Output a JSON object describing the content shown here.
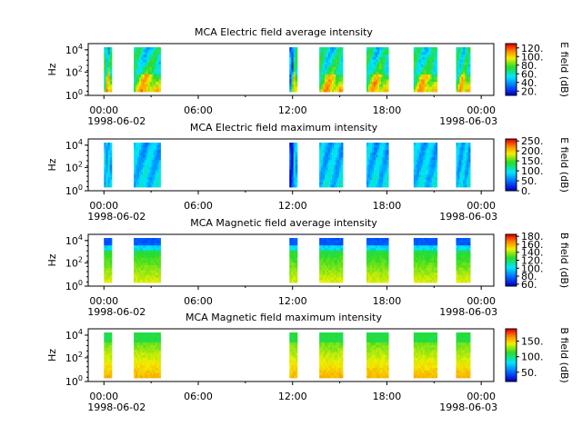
{
  "chart_data": [
    {
      "type": "heatmap",
      "title": "MCA  Electric field average intensity",
      "ylabel": "Hz",
      "y_scale": "log",
      "y_ticks": [
        "10^4",
        "10^2",
        "10^0"
      ],
      "x_ticks": [
        "00:00",
        "06:00",
        "12:00",
        "18:00",
        "00:00"
      ],
      "x_dates": [
        "1998-06-02",
        "1998-06-03"
      ],
      "colorbar": {
        "label": "E field (dB)",
        "ticks": [
          "120.",
          "100.",
          "80.",
          "60.",
          "40.",
          "20."
        ],
        "range": [
          10,
          130
        ]
      },
      "scheme": "efield",
      "segments_hours": [
        [
          0.0,
          0.5
        ],
        [
          1.9,
          3.6
        ],
        [
          11.8,
          12.3
        ],
        [
          13.7,
          15.2
        ],
        [
          16.7,
          18.1
        ],
        [
          19.7,
          21.2
        ],
        [
          22.4,
          23.3
        ]
      ]
    },
    {
      "type": "heatmap",
      "title": "MCA  Electric field maximum intensity",
      "ylabel": "Hz",
      "y_scale": "log",
      "y_ticks": [
        "10^4",
        "10^2",
        "10^0"
      ],
      "x_ticks": [
        "00:00",
        "06:00",
        "12:00",
        "18:00",
        "00:00"
      ],
      "x_dates": [
        "1998-06-02",
        "1998-06-03"
      ],
      "colorbar": {
        "label": "E field (dB)",
        "ticks": [
          "250.",
          "200.",
          "150.",
          "100.",
          "50.",
          "0."
        ],
        "range": [
          0,
          260
        ]
      },
      "scheme": "emax",
      "segments_hours": [
        [
          0.0,
          0.5
        ],
        [
          1.9,
          3.6
        ],
        [
          11.8,
          12.3
        ],
        [
          13.7,
          15.2
        ],
        [
          16.7,
          18.1
        ],
        [
          19.7,
          21.2
        ],
        [
          22.4,
          23.3
        ]
      ]
    },
    {
      "type": "heatmap",
      "title": "MCA  Magnetic field average intensity",
      "ylabel": "Hz",
      "y_scale": "log",
      "y_ticks": [
        "10^4",
        "10^2",
        "10^0"
      ],
      "x_ticks": [
        "00:00",
        "06:00",
        "12:00",
        "18:00",
        "00:00"
      ],
      "x_dates": [
        "1998-06-02",
        "1998-06-03"
      ],
      "colorbar": {
        "label": "B field (dB)",
        "ticks": [
          "180.",
          "160.",
          "140.",
          "120.",
          "100.",
          "80.",
          "60."
        ],
        "range": [
          55,
          185
        ]
      },
      "scheme": "bavg",
      "segments_hours": [
        [
          0.0,
          0.5
        ],
        [
          1.9,
          3.6
        ],
        [
          11.8,
          12.3
        ],
        [
          13.7,
          15.2
        ],
        [
          16.7,
          18.1
        ],
        [
          19.7,
          21.2
        ],
        [
          22.4,
          23.3
        ]
      ]
    },
    {
      "type": "heatmap",
      "title": "MCA  Magnetic field maximum intensity",
      "ylabel": "Hz",
      "y_scale": "log",
      "y_ticks": [
        "10^4",
        "10^2",
        "10^0"
      ],
      "x_ticks": [
        "00:00",
        "06:00",
        "12:00",
        "18:00",
        "00:00"
      ],
      "x_dates": [
        "1998-06-02",
        "1998-06-03"
      ],
      "colorbar": {
        "label": "B field (dB)",
        "ticks": [
          "150.",
          "100.",
          "50."
        ],
        "range": [
          20,
          190
        ]
      },
      "scheme": "bmax",
      "segments_hours": [
        [
          0.0,
          0.5
        ],
        [
          1.9,
          3.6
        ],
        [
          11.8,
          12.3
        ],
        [
          13.7,
          15.2
        ],
        [
          16.7,
          18.1
        ],
        [
          19.7,
          21.2
        ],
        [
          22.4,
          23.3
        ]
      ]
    }
  ]
}
